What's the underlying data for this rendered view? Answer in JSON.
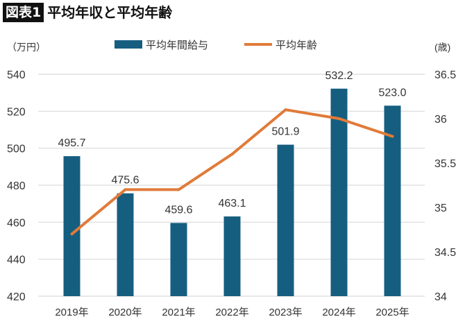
{
  "header": {
    "badge": "図表1",
    "title": "平均年収と平均年齢"
  },
  "chart_data": {
    "type": "bar+line",
    "title": "平均年収と平均年齢",
    "categories": [
      "2019年",
      "2020年",
      "2021年",
      "2022年",
      "2023年",
      "2024年",
      "2025年"
    ],
    "y_left": {
      "label": "（万円）",
      "range": [
        420,
        540
      ],
      "ticks": [
        420,
        440,
        460,
        480,
        500,
        520,
        540
      ]
    },
    "y_right": {
      "label": "(歳)",
      "range": [
        34,
        36.5
      ],
      "ticks": [
        "34",
        "34.5",
        "35",
        "35.5",
        "36",
        "36.5"
      ]
    },
    "series": [
      {
        "name": "平均年間給与",
        "type": "bar",
        "axis": "left",
        "color": "#155e80",
        "values": [
          495.7,
          475.6,
          459.6,
          463.1,
          501.9,
          532.2,
          523.0
        ],
        "labels": [
          "495.7",
          "475.6",
          "459.6",
          "463.1",
          "501.9",
          "532.2",
          "523.0"
        ]
      },
      {
        "name": "平均年齢",
        "type": "line",
        "axis": "right",
        "color": "#e07b39",
        "values": [
          34.7,
          35.2,
          35.2,
          35.6,
          36.1,
          36.0,
          35.8
        ]
      }
    ],
    "grid": true,
    "legend": "top"
  }
}
